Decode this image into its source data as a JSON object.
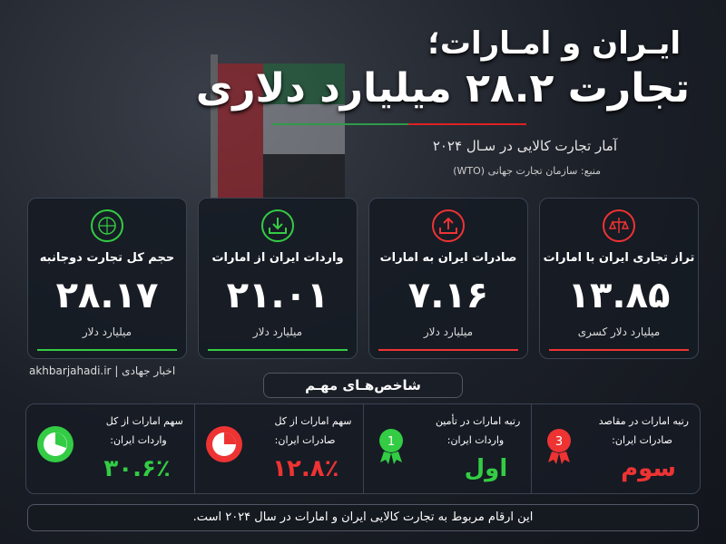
{
  "header": {
    "title_line1": "ایـران و امـارات؛",
    "title_line2": "تجارت ۲۸.۲ میلیارد دلاری",
    "subtitle": "آمار تجارت کالایی در سـال ۲۰۲۴",
    "source": "منبع: سازمان تجارت جهانی (WTO)"
  },
  "cards": [
    {
      "title": "تراز تجاری ایران با امارات",
      "value": "۱۳.۸۵",
      "unit": "میلیارد دلار کسری"
    },
    {
      "title": "صادرات ایران به امارات",
      "value": "۷.۱۶",
      "unit": "میلیارد دلار"
    },
    {
      "title": "واردات ایران از امارات",
      "value": "۲۱.۰۱",
      "unit": "میلیارد دلار"
    },
    {
      "title": "حجم کل تجارت دوجانبه",
      "value": "۲۸.۱۷",
      "unit": "میلیارد دلار"
    }
  ],
  "watermark": {
    "name": "اخبار جهادی",
    "site": "akhbarjahadi.ir"
  },
  "section_title": "شاخص‌هـای مهـم",
  "indicators": [
    {
      "line1": "رتبه امارات در مقاصد",
      "line2": "صادرات ایران:",
      "value": "سوم"
    },
    {
      "line1": "رتبه امارات در تأمین",
      "line2": "واردات ایران:",
      "value": "اول"
    },
    {
      "line1": "سهم امارات از کل",
      "line2": "صادرات ایران:",
      "value": "۱۲.۸٪"
    },
    {
      "line1": "سهم امارات از کل",
      "line2": "واردات ایران:",
      "value": "۳۰.۶٪"
    }
  ],
  "footer": "این ارقام مربوط به تجارت کالایی ایران و امارات در سال ۲۰۲۴ است."
}
